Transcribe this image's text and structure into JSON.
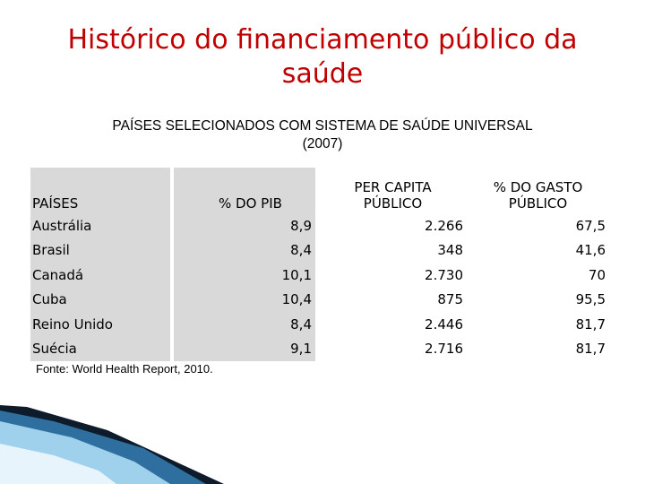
{
  "title": "Histórico do financiamento público da saúde",
  "subtitle_line1": "PAÍSES SELECIONADOS COM SISTEMA DE SAÚDE UNIVERSAL",
  "subtitle_line2": "(2007)",
  "table": {
    "headers": {
      "country": "PAÍSES",
      "pib": "% DO PIB",
      "per_capita_line1": "PER CAPITA",
      "per_capita_line2": "PÚBLICO",
      "gasto_line1": "% DO GASTO",
      "gasto_line2": "PÚBLICO"
    },
    "rows": [
      {
        "country": "Austrália",
        "pib": "8,9",
        "per_capita": "2.266",
        "gasto": "67,5"
      },
      {
        "country": "Brasil",
        "pib": "8,4",
        "per_capita": "348",
        "gasto": "41,6"
      },
      {
        "country": "Canadá",
        "pib": "10,1",
        "per_capita": "2.730",
        "gasto": "70"
      },
      {
        "country": "Cuba",
        "pib": "10,4",
        "per_capita": "875",
        "gasto": "95,5"
      },
      {
        "country": "Reino Unido",
        "pib": "8,4",
        "per_capita": "2.446",
        "gasto": "81,7"
      },
      {
        "country": "Suécia",
        "pib": "9,1",
        "per_capita": "2.716",
        "gasto": "81,7"
      }
    ]
  },
  "source": "Fonte: World Health Report, 2010.",
  "colors": {
    "title": "#c00000",
    "shade": "#d9d9d9",
    "accent_dark": "#0d1b2a",
    "accent_blue": "#2f6f9f"
  }
}
